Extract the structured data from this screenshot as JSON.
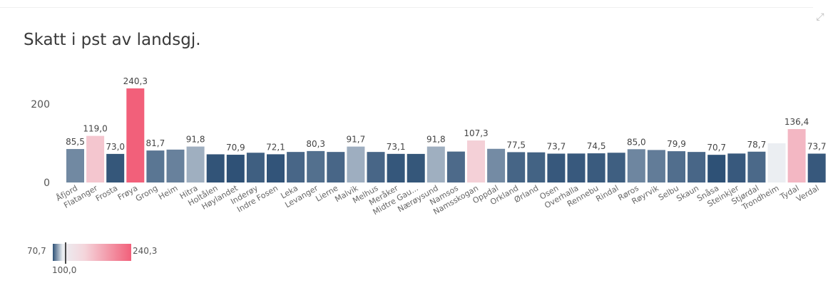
{
  "title": "Skatt i pst av landsgj.",
  "expand_icon": "expand-icon",
  "legend": {
    "min_label": "70,7",
    "mid_label": "100,0",
    "max_label": "240,3",
    "colors": {
      "low": "#2e5176",
      "mid": "#ebeef2",
      "high": "#f2607a"
    }
  },
  "chart_data": {
    "type": "bar",
    "title": "Skatt i pst av landsgj.",
    "xlabel": "",
    "ylabel": "",
    "ylim": [
      0,
      260
    ],
    "yticks": [
      "0",
      "200"
    ],
    "grid": false,
    "categories": [
      "Åfjord",
      "Flatanger",
      "Frosta",
      "Frøya",
      "Grong",
      "Heim",
      "Hitra",
      "Holtålen",
      "Høylandet",
      "Inderøy",
      "Indre Fosen",
      "Leka",
      "Levanger",
      "Lierne",
      "Malvik",
      "Melhus",
      "Meråker",
      "Midtre Gau...",
      "Nærøysund",
      "Namsos",
      "Namsskogan",
      "Oppdal",
      "Orkland",
      "Ørland",
      "Osen",
      "Overhalla",
      "Rennebu",
      "Rindal",
      "Røros",
      "Røyrvik",
      "Selbu",
      "Skaun",
      "Snåsa",
      "Steinkjer",
      "Stjørdal",
      "Trondheim",
      "Tydal",
      "Verdal"
    ],
    "values": [
      85.5,
      119.0,
      73.0,
      240.3,
      81.7,
      84.0,
      91.8,
      72.0,
      70.9,
      76.0,
      72.1,
      78.0,
      80.3,
      78.0,
      91.7,
      78.0,
      73.1,
      73.0,
      91.8,
      79.0,
      107.3,
      86.0,
      77.5,
      77.0,
      73.7,
      74.0,
      74.5,
      76.0,
      85.0,
      83.0,
      79.9,
      78.0,
      70.7,
      74.0,
      78.7,
      100.0,
      136.4,
      73.7
    ],
    "data_labels": [
      "85,5",
      "119,0",
      "73,0",
      "240,3",
      "81,7",
      "",
      "91,8",
      "",
      "70,9",
      "",
      "72,1",
      "",
      "80,3",
      "",
      "91,7",
      "",
      "73,1",
      "",
      "91,8",
      "",
      "107,3",
      "",
      "77,5",
      "",
      "73,7",
      "",
      "74,5",
      "",
      "85,0",
      "",
      "79,9",
      "",
      "70,7",
      "",
      "78,7",
      "",
      "136,4",
      "73,7"
    ],
    "color_scale": {
      "min": 70.7,
      "mid": 100.0,
      "max": 240.3
    }
  }
}
